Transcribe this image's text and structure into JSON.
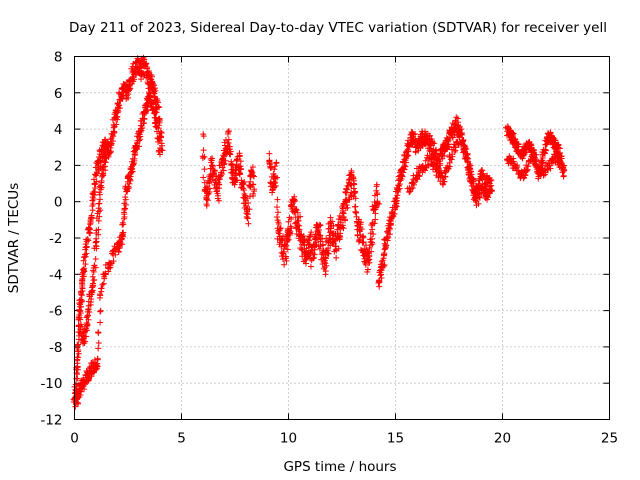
{
  "chart_data": {
    "type": "scatter",
    "title": "Day 211 of 2023, Sidereal Day-to-day VTEC variation (SDTVAR) for receiver yell",
    "xlabel": "GPS time / hours",
    "ylabel": "SDTVAR / TECUs",
    "xlim": [
      0,
      25
    ],
    "ylim": [
      -12,
      8
    ],
    "xticks": [
      0,
      5,
      10,
      15,
      20,
      25
    ],
    "yticks": [
      -12,
      -10,
      -8,
      -6,
      -4,
      -2,
      0,
      2,
      4,
      6,
      8
    ],
    "grid": true,
    "marker": "+",
    "color": "#ff0000",
    "series": [
      {
        "name": "SDTVAR",
        "segments": [
          {
            "x": [
              0.0,
              0.05,
              0.1,
              0.15,
              0.2,
              0.25,
              0.3,
              0.35,
              0.4,
              0.5,
              0.6,
              0.7,
              0.8,
              0.9,
              1.0,
              1.1,
              1.2,
              1.3,
              1.4,
              1.5,
              1.6,
              1.7,
              1.8,
              1.9,
              2.0,
              2.1,
              2.2,
              2.3,
              2.4,
              2.5,
              2.6,
              2.7,
              2.8,
              2.9,
              3.0,
              3.1,
              3.2,
              3.3,
              3.4,
              3.5,
              3.6,
              3.7,
              3.8,
              3.9,
              4.0,
              4.1
            ],
            "y": [
              -11.0,
              -10.5,
              -9.5,
              -8.5,
              -7.0,
              -6.0,
              -5.5,
              -4.5,
              -4.0,
              -3.0,
              -2.0,
              -1.5,
              -0.5,
              0.5,
              1.5,
              2.0,
              2.5,
              2.8,
              3.0,
              3.0,
              2.8,
              3.2,
              3.8,
              4.5,
              5.0,
              5.5,
              6.0,
              6.2,
              6.0,
              6.2,
              6.5,
              7.0,
              7.2,
              7.5,
              7.4,
              7.2,
              7.6,
              7.4,
              7.0,
              6.8,
              6.5,
              6.2,
              5.8,
              5.0,
              4.0,
              3.0
            ],
            "spread": 0.9
          },
          {
            "x": [
              0.0,
              0.1,
              0.2,
              0.3,
              0.4,
              0.5,
              0.6,
              0.7,
              0.8,
              0.9,
              1.0,
              1.1,
              1.2,
              1.4,
              1.6,
              1.8,
              2.0,
              2.1,
              2.2,
              2.3,
              2.4,
              2.5,
              2.6,
              2.7,
              2.8,
              2.9,
              3.0,
              3.1,
              3.2,
              3.3,
              3.4,
              3.5,
              3.6,
              3.7,
              3.8,
              3.9,
              4.0
            ],
            "y": [
              -10.5,
              -11.0,
              -10.5,
              -10.3,
              -10.0,
              -9.8,
              -9.6,
              -9.4,
              -9.2,
              -9.0,
              -9.0,
              -9.0,
              -5.0,
              -4.0,
              -3.5,
              -3.0,
              -2.5,
              -2.2,
              -2.0,
              -1.0,
              0.5,
              1.0,
              1.5,
              2.0,
              2.5,
              3.0,
              3.5,
              4.0,
              4.5,
              5.0,
              5.5,
              6.0,
              5.5,
              5.0,
              4.5,
              4.0,
              2.5
            ],
            "spread": 0.7
          },
          {
            "x": [
              0.3,
              0.4,
              0.5,
              0.6,
              0.7,
              0.8,
              0.9,
              1.0,
              1.1,
              1.2,
              1.3,
              1.4,
              1.5
            ],
            "y": [
              -7.0,
              -7.5,
              -7.2,
              -6.5,
              -5.5,
              -5.0,
              -4.0,
              -2.5,
              -1.0,
              0.5,
              1.5,
              2.0,
              2.5
            ],
            "spread": 0.8
          },
          {
            "x": [
              6.0,
              6.1,
              6.2,
              6.3,
              6.4,
              6.5,
              6.6,
              6.7,
              6.8,
              6.9,
              7.0,
              7.1,
              7.2,
              7.3,
              7.4,
              7.5,
              7.6,
              7.7,
              7.8,
              7.9,
              8.0,
              8.1,
              8.2,
              8.3,
              8.4
            ],
            "y": [
              3.4,
              0.5,
              0.0,
              1.0,
              2.0,
              1.5,
              1.0,
              0.5,
              1.5,
              2.0,
              2.5,
              3.0,
              3.5,
              2.0,
              1.5,
              1.0,
              1.8,
              2.2,
              1.5,
              0.5,
              0.0,
              -1.0,
              1.0,
              1.5,
              0.5
            ],
            "spread": 1.1
          },
          {
            "x": [
              9.1,
              9.2,
              9.3,
              9.4,
              9.5,
              9.6,
              9.7,
              9.8,
              9.9,
              10.0,
              10.1,
              10.2,
              10.3,
              10.4,
              10.5,
              10.6,
              10.7,
              10.8,
              10.9,
              11.0,
              11.1,
              11.2,
              11.3,
              11.4,
              11.5,
              11.6,
              11.7,
              11.8,
              11.9,
              12.0,
              12.1,
              12.2,
              12.3,
              12.4,
              12.5,
              12.6,
              12.7,
              12.8,
              12.9,
              13.0,
              13.1,
              13.2,
              13.3,
              13.4,
              13.5,
              13.6,
              13.7,
              13.8,
              13.9,
              14.0,
              14.1,
              14.2
            ],
            "y": [
              2.0,
              1.5,
              1.0,
              2.0,
              -1.5,
              -2.0,
              -2.5,
              -3.0,
              -2.5,
              -2.0,
              -1.0,
              0.0,
              -0.5,
              -1.0,
              -1.5,
              -2.0,
              -2.5,
              -3.0,
              -2.5,
              -2.0,
              -3.0,
              -2.5,
              -2.0,
              -1.5,
              -2.0,
              -3.0,
              -3.5,
              -2.5,
              -2.0,
              -1.5,
              -2.0,
              -2.5,
              -2.0,
              -1.5,
              -1.0,
              -0.5,
              0.0,
              0.5,
              1.0,
              1.0,
              0.5,
              -1.0,
              -1.5,
              -2.0,
              -2.5,
              -3.0,
              -3.5,
              -2.5,
              -1.5,
              -0.5,
              0.0,
              0.5
            ],
            "spread": 1.4
          },
          {
            "x": [
              14.2,
              14.3,
              14.4,
              14.5,
              14.6,
              14.7,
              14.8,
              14.9,
              15.0,
              15.1,
              15.2,
              15.3,
              15.4,
              15.5,
              15.6,
              15.7,
              15.8,
              15.9,
              16.0,
              16.1,
              16.2,
              16.3,
              16.4,
              16.5,
              16.6,
              16.7,
              16.8,
              16.9,
              17.0,
              17.1,
              17.2,
              17.3,
              17.4,
              17.5,
              17.6,
              17.7,
              17.8,
              17.9,
              18.0,
              18.1,
              18.2,
              18.3,
              18.4,
              18.5,
              18.6,
              18.7,
              18.8,
              18.9,
              19.0,
              19.1,
              19.2,
              19.3,
              19.4,
              19.5
            ],
            "y": [
              -4.5,
              -4.0,
              -3.5,
              -2.5,
              -2.0,
              -1.5,
              -1.0,
              -0.5,
              0.0,
              0.5,
              1.0,
              1.5,
              2.0,
              2.5,
              3.0,
              3.5,
              3.5,
              3.3,
              3.0,
              3.2,
              3.5,
              3.4,
              3.6,
              3.4,
              3.2,
              3.0,
              2.8,
              2.5,
              2.2,
              2.5,
              2.8,
              3.0,
              3.2,
              3.5,
              3.8,
              4.0,
              4.2,
              4.3,
              4.0,
              3.5,
              3.0,
              2.5,
              2.0,
              1.5,
              1.0,
              0.5,
              0.5,
              1.0,
              1.5,
              1.0,
              0.5,
              0.5,
              0.8,
              1.0
            ],
            "spread": 0.8
          },
          {
            "x": [
              15.6,
              15.8,
              16.0,
              16.2,
              16.4,
              16.6,
              16.8,
              17.0,
              17.2,
              17.4,
              17.6,
              17.8,
              18.0,
              18.2,
              18.4,
              18.6,
              18.8,
              19.0,
              19.2,
              19.4
            ],
            "y": [
              0.5,
              1.0,
              1.5,
              1.8,
              2.0,
              2.5,
              2.0,
              1.5,
              1.2,
              1.8,
              2.5,
              3.0,
              3.5,
              3.0,
              2.0,
              1.0,
              0.0,
              0.5,
              1.5,
              1.0
            ],
            "spread": 0.6
          },
          {
            "x": [
              20.2,
              20.3,
              20.4,
              20.5,
              20.6,
              20.7,
              20.8,
              20.9,
              21.0,
              21.1,
              21.2,
              21.3,
              21.4,
              21.5,
              21.6,
              21.7,
              21.8,
              21.9,
              22.0,
              22.1,
              22.2,
              22.3,
              22.4,
              22.5,
              22.6,
              22.7,
              22.8,
              22.9
            ],
            "y": [
              4.0,
              3.8,
              3.6,
              3.5,
              3.2,
              3.0,
              2.8,
              2.6,
              2.8,
              3.0,
              3.2,
              3.0,
              2.8,
              2.5,
              2.0,
              1.5,
              2.0,
              2.5,
              3.0,
              3.4,
              3.6,
              3.5,
              3.2,
              3.0,
              2.8,
              2.5,
              2.0,
              1.5
            ],
            "spread": 0.6
          },
          {
            "x": [
              20.2,
              20.4,
              20.6,
              20.8,
              21.0,
              21.2,
              21.4,
              21.6,
              21.8,
              22.0,
              22.2,
              22.4,
              22.6,
              22.8
            ],
            "y": [
              2.5,
              2.2,
              2.0,
              1.5,
              1.5,
              2.0,
              2.5,
              2.0,
              1.5,
              1.8,
              2.0,
              2.5,
              2.2,
              1.8
            ],
            "spread": 0.5
          }
        ]
      }
    ]
  }
}
